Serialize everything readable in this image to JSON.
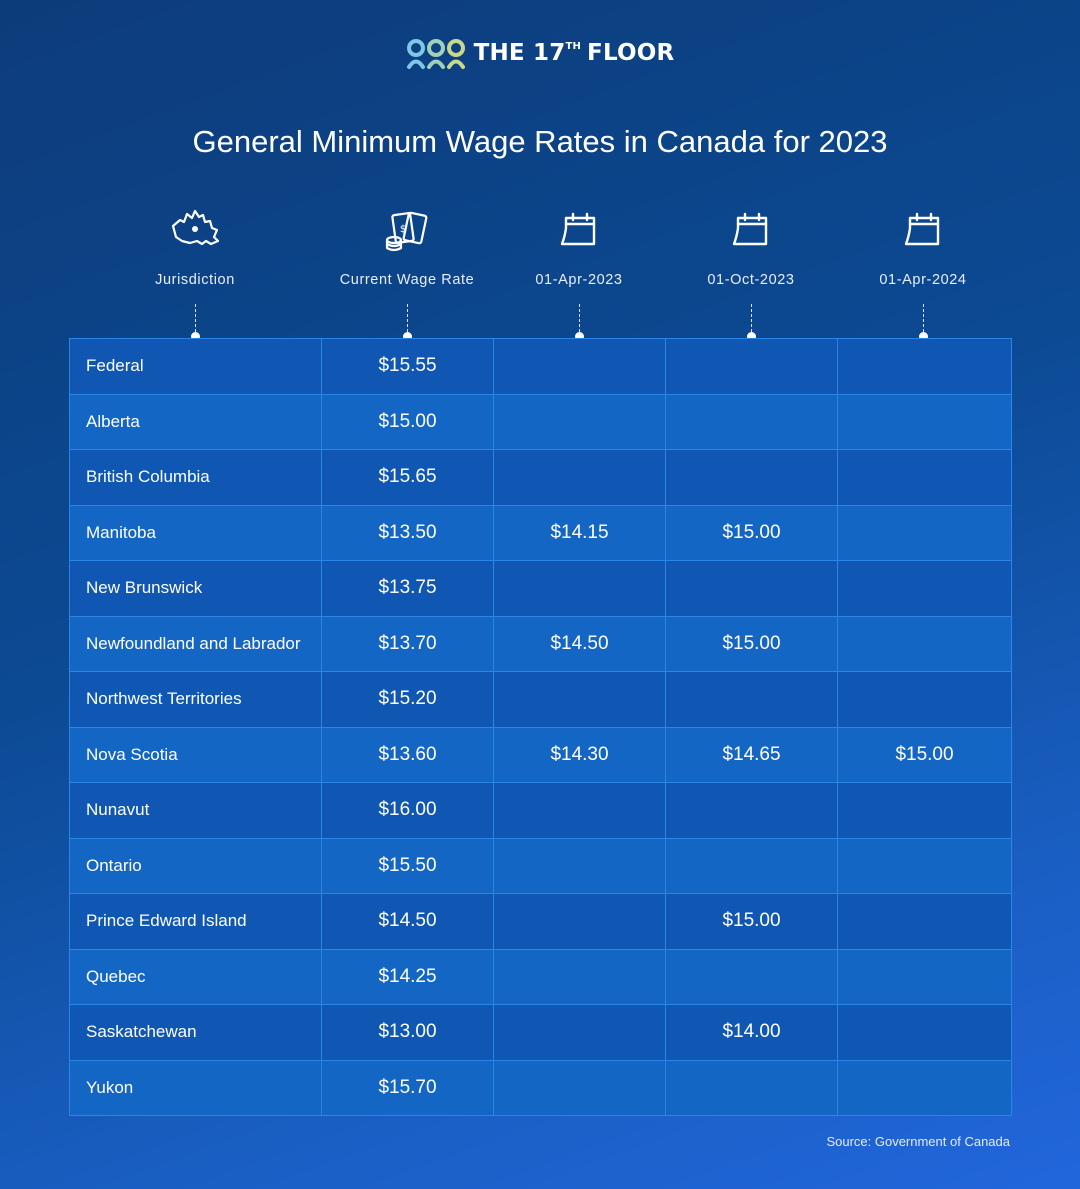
{
  "brand": {
    "name_prefix": "THE 17",
    "name_sup": "TH",
    "name_suffix": "FLOOR",
    "logo_colors": [
      "#7ec7e6",
      "#9fd2b7",
      "#c8d98c"
    ]
  },
  "colors": {
    "bg_start": "#0d3c7a",
    "bg_end": "#2266dc",
    "grid_line": "#2a86e6",
    "row_a": "#0f57b3",
    "row_b": "#1466c4"
  },
  "chart_data": {
    "type": "table",
    "title": "General Minimum Wage Rates in Canada for 2023",
    "columns": [
      {
        "label": "Jurisdiction",
        "icon": "canada-map-icon"
      },
      {
        "label": "Current Wage Rate",
        "icon": "money-icon"
      },
      {
        "label": "01-Apr-2023",
        "icon": "calendar-icon"
      },
      {
        "label": "01-Oct-2023",
        "icon": "calendar-icon"
      },
      {
        "label": "01-Apr-2024",
        "icon": "calendar-icon"
      }
    ],
    "rows": [
      {
        "jurisdiction": "Federal",
        "current": "$15.55",
        "apr2023": "",
        "oct2023": "",
        "apr2024": ""
      },
      {
        "jurisdiction": "Alberta",
        "current": "$15.00",
        "apr2023": "",
        "oct2023": "",
        "apr2024": ""
      },
      {
        "jurisdiction": "British Columbia",
        "current": "$15.65",
        "apr2023": "",
        "oct2023": "",
        "apr2024": ""
      },
      {
        "jurisdiction": "Manitoba",
        "current": "$13.50",
        "apr2023": "$14.15",
        "oct2023": "$15.00",
        "apr2024": ""
      },
      {
        "jurisdiction": "New Brunswick",
        "current": "$13.75",
        "apr2023": "",
        "oct2023": "",
        "apr2024": ""
      },
      {
        "jurisdiction": "Newfoundland and Labrador",
        "current": "$13.70",
        "apr2023": "$14.50",
        "oct2023": "$15.00",
        "apr2024": ""
      },
      {
        "jurisdiction": "Northwest Territories",
        "current": "$15.20",
        "apr2023": "",
        "oct2023": "",
        "apr2024": ""
      },
      {
        "jurisdiction": "Nova Scotia",
        "current": "$13.60",
        "apr2023": "$14.30",
        "oct2023": "$14.65",
        "apr2024": "$15.00"
      },
      {
        "jurisdiction": "Nunavut",
        "current": "$16.00",
        "apr2023": "",
        "oct2023": "",
        "apr2024": ""
      },
      {
        "jurisdiction": "Ontario",
        "current": "$15.50",
        "apr2023": "",
        "oct2023": "",
        "apr2024": ""
      },
      {
        "jurisdiction": "Prince Edward Island",
        "current": "$14.50",
        "apr2023": "",
        "oct2023": "$15.00",
        "apr2024": ""
      },
      {
        "jurisdiction": "Quebec",
        "current": "$14.25",
        "apr2023": "",
        "oct2023": "",
        "apr2024": ""
      },
      {
        "jurisdiction": "Saskatchewan",
        "current": "$13.00",
        "apr2023": "",
        "oct2023": "$14.00",
        "apr2024": ""
      },
      {
        "jurisdiction": "Yukon",
        "current": "$15.70",
        "apr2023": "",
        "oct2023": "",
        "apr2024": ""
      }
    ],
    "source": "Source: Government of Canada"
  }
}
